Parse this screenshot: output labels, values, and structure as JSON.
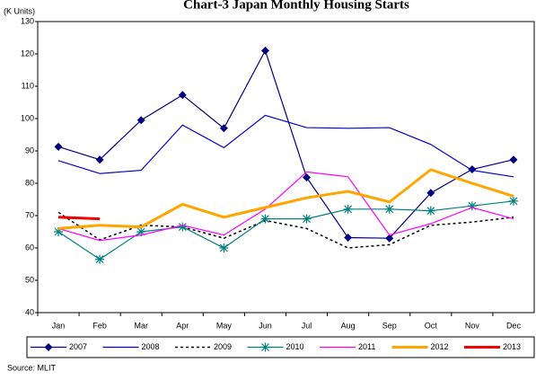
{
  "chart_data": {
    "type": "line",
    "title": "Chart-3 Japan Monthly Housing Starts",
    "y_label": "(K Units)",
    "source": "Source: MLIT",
    "categories": [
      "Jan",
      "Feb",
      "Mar",
      "Apr",
      "May",
      "Jun",
      "Jul",
      "Aug",
      "Sep",
      "Oct",
      "Nov",
      "Dec"
    ],
    "ylim": [
      40,
      130
    ],
    "yticks": [
      40,
      50,
      60,
      70,
      80,
      90,
      100,
      110,
      120,
      130
    ],
    "grid": false,
    "legend": "bottom",
    "series": [
      {
        "name": "2007",
        "color": "#000080",
        "width": 1.2,
        "style": "solid",
        "marker": "diamond",
        "values": [
          91.3,
          87.3,
          99.5,
          107.3,
          97,
          121,
          81.8,
          63.2,
          63,
          77,
          84.3,
          87.3
        ]
      },
      {
        "name": "2008",
        "color": "#0000cc",
        "width": 1.2,
        "style": "solid",
        "marker": "none",
        "values": [
          87,
          83,
          84,
          98,
          91,
          101,
          97.2,
          97,
          97.2,
          92,
          84,
          82
        ]
      },
      {
        "name": "2009",
        "color": "#000000",
        "width": 1.5,
        "style": "dotted",
        "marker": "none",
        "values": [
          71,
          62.5,
          67,
          66.5,
          63,
          68.5,
          66,
          60,
          61,
          67,
          68,
          69.5
        ]
      },
      {
        "name": "2010",
        "color": "#008080",
        "width": 1.2,
        "style": "solid",
        "marker": "asterisk",
        "values": [
          65,
          56.5,
          65,
          66.5,
          60,
          69,
          69,
          72,
          72,
          71.5,
          73,
          74.5
        ]
      },
      {
        "name": "2011",
        "color": "#ff00ff",
        "width": 1.2,
        "style": "solid",
        "marker": "none",
        "values": [
          66,
          62.3,
          64,
          67,
          64,
          72,
          83.5,
          82,
          64,
          67.5,
          72.5,
          69
        ]
      },
      {
        "name": "2012",
        "color": "#ffa500",
        "width": 3,
        "style": "solid",
        "marker": "none",
        "values": [
          66,
          67,
          66.5,
          73.5,
          69.5,
          72.5,
          75.5,
          77.5,
          74.2,
          84.2,
          80,
          76
        ]
      },
      {
        "name": "2013",
        "color": "#ee0000",
        "width": 3,
        "style": "solid",
        "marker": "none",
        "values": [
          69.5,
          69,
          null,
          null,
          null,
          null,
          null,
          null,
          null,
          null,
          null,
          null
        ]
      }
    ]
  }
}
